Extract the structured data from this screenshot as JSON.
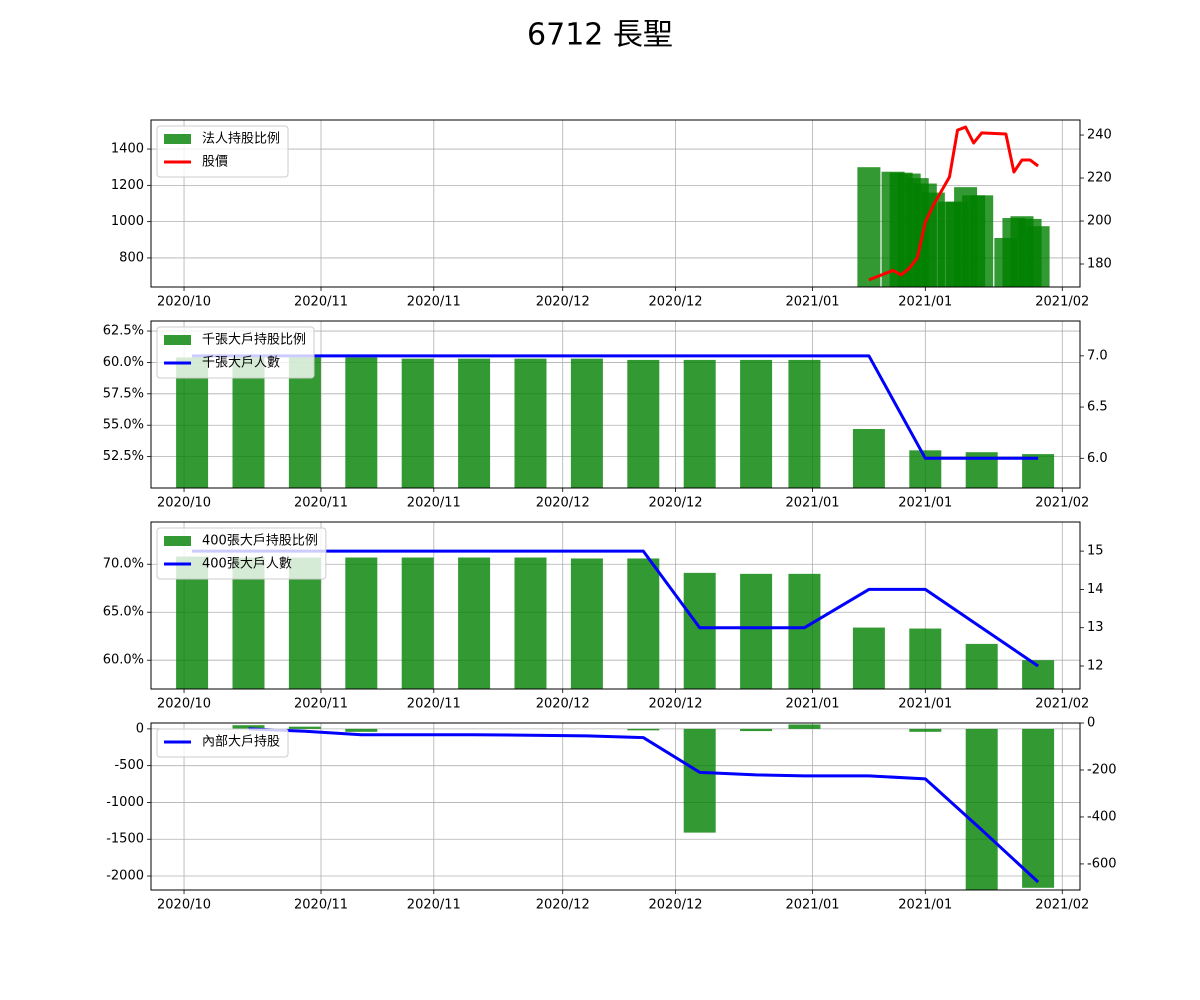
{
  "title": "6712 長聖",
  "chart_data": [
    {
      "type": "combo",
      "x": [
        85,
        88,
        89,
        90,
        91,
        92,
        93,
        95,
        96,
        97,
        98,
        99,
        102,
        103,
        104,
        105,
        106
      ],
      "xlim": [
        -4.1,
        111.2
      ],
      "xticks": [
        {
          "value": 0,
          "label": "2020/10"
        },
        {
          "value": 17,
          "label": "2020/11"
        },
        {
          "value": 31,
          "label": "2020/11"
        },
        {
          "value": 47,
          "label": "2020/12"
        },
        {
          "value": 61,
          "label": "2020/12"
        },
        {
          "value": 78,
          "label": "2021/01"
        },
        {
          "value": 92,
          "label": "2021/01"
        },
        {
          "value": 109,
          "label": "2021/02"
        }
      ],
      "ylim": [
        640,
        1560
      ],
      "yticks": [
        800,
        1000,
        1200,
        1400
      ],
      "y2lim": [
        169.3,
        247
      ],
      "y2ticks": [
        180,
        200,
        220,
        240
      ],
      "grid": true,
      "legend": "upper left",
      "series": [
        {
          "name": "法人持股比例",
          "kind": "bar",
          "color": "#008000",
          "values": [
            1300,
            1275,
            1270,
            1265,
            1240,
            1210,
            1160,
            1110,
            1110,
            1190,
            1145,
            1145,
            910,
            1020,
            1030,
            1015,
            975
          ]
        },
        {
          "name": "股價",
          "kind": "line",
          "color": "#ff0000",
          "axis": "y2",
          "values": [
            172.6,
            177,
            174.9,
            178,
            182.8,
            199.5,
            207.4,
            220.5,
            242.3,
            243.7,
            236.3,
            241,
            240.5,
            222.8,
            228.4,
            228.4,
            225.6
          ]
        }
      ]
    },
    {
      "type": "combo",
      "x": [
        1,
        8,
        15,
        22,
        29,
        36,
        43,
        50,
        57,
        64,
        71,
        77,
        85,
        92,
        99,
        106
      ],
      "xlim": [
        -4.1,
        111.2
      ],
      "xticks": [
        {
          "value": 0,
          "label": "2020/10"
        },
        {
          "value": 17,
          "label": "2020/11"
        },
        {
          "value": 31,
          "label": "2020/11"
        },
        {
          "value": 47,
          "label": "2020/12"
        },
        {
          "value": 61,
          "label": "2020/12"
        },
        {
          "value": 78,
          "label": "2021/01"
        },
        {
          "value": 92,
          "label": "2021/01"
        },
        {
          "value": 109,
          "label": "2021/02"
        }
      ],
      "ylim": [
        50,
        63.3
      ],
      "yticks": [
        {
          "value": 52.5,
          "label": "52.5%"
        },
        {
          "value": 55,
          "label": "55.0%"
        },
        {
          "value": 57.5,
          "label": "57.5%"
        },
        {
          "value": 60,
          "label": "60.0%"
        },
        {
          "value": 62.5,
          "label": "62.5%"
        }
      ],
      "y2lim": [
        5.71,
        7.34
      ],
      "y2ticks": [
        {
          "value": 6,
          "label": "6.0"
        },
        6.5,
        {
          "value": 7,
          "label": "7.0"
        }
      ],
      "grid": true,
      "legend": "upper left",
      "series": [
        {
          "name": "千張大戶持股比例",
          "kind": "bar",
          "color": "#008000",
          "values": [
            60.4,
            60.4,
            60.4,
            60.4,
            60.3,
            60.3,
            60.3,
            60.3,
            60.2,
            60.2,
            60.2,
            60.2,
            54.7,
            53.0,
            52.85,
            52.7
          ]
        },
        {
          "name": "千張大戶人數",
          "kind": "line",
          "color": "#0000ff",
          "axis": "y2",
          "values": [
            7,
            7,
            7,
            7,
            7,
            7,
            7,
            7,
            7,
            7,
            7,
            7,
            7,
            6,
            6,
            6
          ]
        }
      ]
    },
    {
      "type": "combo",
      "x": [
        1,
        8,
        15,
        22,
        29,
        36,
        43,
        50,
        57,
        64,
        71,
        77,
        85,
        92,
        99,
        106
      ],
      "xlim": [
        -4.1,
        111.2
      ],
      "xticks": [
        {
          "value": 0,
          "label": "2020/10"
        },
        {
          "value": 17,
          "label": "2020/11"
        },
        {
          "value": 31,
          "label": "2020/11"
        },
        {
          "value": 47,
          "label": "2020/12"
        },
        {
          "value": 61,
          "label": "2020/12"
        },
        {
          "value": 78,
          "label": "2021/01"
        },
        {
          "value": 92,
          "label": "2021/01"
        },
        {
          "value": 109,
          "label": "2021/02"
        }
      ],
      "ylim": [
        57,
        74.4
      ],
      "yticks": [
        {
          "value": 60,
          "label": "60.0%"
        },
        {
          "value": 65,
          "label": "65.0%"
        },
        {
          "value": 70,
          "label": "70.0%"
        }
      ],
      "y2lim": [
        11.4,
        15.76
      ],
      "y2ticks": [
        12,
        13,
        14,
        15
      ],
      "grid": true,
      "legend": "upper left",
      "series": [
        {
          "name": "400張大戶持股比例",
          "kind": "bar",
          "color": "#008000",
          "values": [
            70.8,
            70.7,
            70.7,
            70.7,
            70.7,
            70.7,
            70.7,
            70.6,
            70.6,
            69.1,
            69.0,
            69.0,
            63.4,
            63.3,
            61.7,
            60.0
          ]
        },
        {
          "name": "400張大戶人數",
          "kind": "line",
          "color": "#0000ff",
          "axis": "y2",
          "values": [
            15,
            15,
            15,
            15,
            15,
            15,
            15,
            15,
            15,
            13,
            13,
            13,
            14,
            14,
            13,
            12
          ]
        }
      ]
    },
    {
      "type": "combo",
      "x": [
        1,
        8,
        15,
        22,
        29,
        36,
        43,
        50,
        57,
        64,
        71,
        77,
        85,
        92,
        99,
        106
      ],
      "xlim": [
        -4.1,
        111.2
      ],
      "xticks": [
        {
          "value": 0,
          "label": "2020/10"
        },
        {
          "value": 17,
          "label": "2020/11"
        },
        {
          "value": 31,
          "label": "2020/11"
        },
        {
          "value": 47,
          "label": "2020/12"
        },
        {
          "value": 61,
          "label": "2020/12"
        },
        {
          "value": 78,
          "label": "2021/01"
        },
        {
          "value": 92,
          "label": "2021/01"
        },
        {
          "value": 109,
          "label": "2021/02"
        }
      ],
      "ylim": [
        -2190,
        80
      ],
      "yticks": [
        -2000,
        -1500,
        -1000,
        -500,
        0
      ],
      "y2lim": [
        -711,
        0
      ],
      "y2ticks": [
        -600,
        -400,
        -200,
        0
      ],
      "grid": true,
      "legend": "upper left",
      "series": [
        {
          "kind": "bar",
          "color": "#008000",
          "values": [
            0,
            50,
            30,
            -40,
            0,
            0,
            0,
            0,
            -20,
            -1410,
            -30,
            60,
            0,
            -40,
            -2200,
            -2160
          ]
        },
        {
          "name": "內部大戶持股",
          "kind": "line",
          "color": "#0000ff",
          "axis": "y2",
          "values": [
            null,
            -25,
            -35,
            -50,
            -50,
            -50,
            -52,
            -55,
            -62,
            -210,
            -221,
            -225,
            -225,
            -238,
            -455,
            -677
          ]
        }
      ]
    }
  ]
}
